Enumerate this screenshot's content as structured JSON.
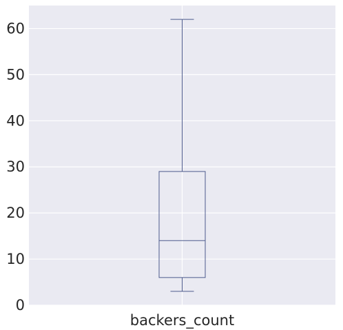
{
  "chart_data": {
    "type": "box",
    "categories": [
      "backers_count"
    ],
    "boxes": [
      {
        "name": "backers_count",
        "whisker_low": 3,
        "q1": 6,
        "median": 14,
        "q3": 29,
        "whisker_high": 62
      }
    ],
    "title": "",
    "xlabel": "",
    "ylabel": "",
    "ylim": [
      0,
      65
    ],
    "yticks": [
      0,
      10,
      20,
      30,
      40,
      50,
      60
    ],
    "ytick_labels": [
      "0",
      "10",
      "20",
      "30",
      "40",
      "50",
      "60"
    ],
    "grid": true,
    "colors": {
      "background": "#EAEAF2",
      "grid": "#FFFFFF",
      "box": "#4C5A8C",
      "median": "#4C5A8C"
    }
  }
}
